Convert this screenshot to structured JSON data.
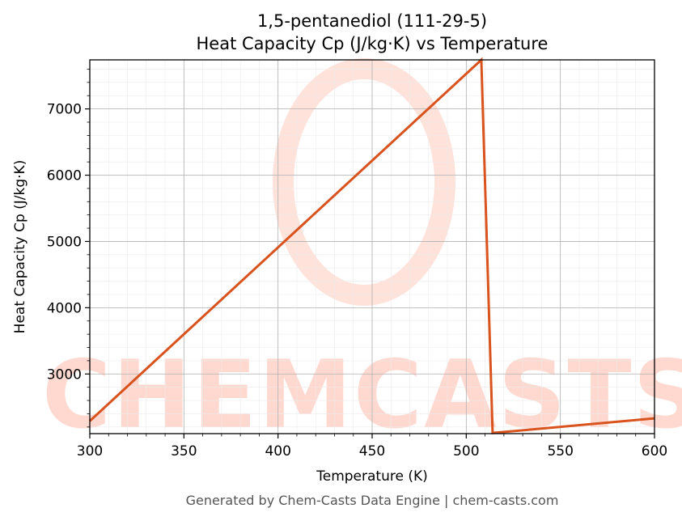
{
  "chart_data": {
    "type": "line",
    "title_line1": "1,5-pentanediol (111-29-5)",
    "title_line2": "Heat Capacity Cp (J/kg·K) vs Temperature",
    "xlabel": "Temperature (K)",
    "ylabel": "Heat Capacity Cp (J/kg·K)",
    "xlim": [
      300,
      600
    ],
    "ylim": [
      2100,
      7740
    ],
    "xticks": [
      300,
      350,
      400,
      450,
      500,
      550,
      600
    ],
    "yticks": [
      3000,
      4000,
      5000,
      6000,
      7000
    ],
    "grid": true,
    "series": [
      {
        "color": "#d9531e",
        "x": [
          300,
          508,
          514,
          600
        ],
        "y": [
          2290,
          7740,
          2110,
          2330
        ]
      }
    ]
  },
  "watermark": {
    "text": "CHEMCASTS",
    "color": "#ffd9cf"
  },
  "footer": "Generated by Chem-Casts Data Engine | chem-casts.com"
}
